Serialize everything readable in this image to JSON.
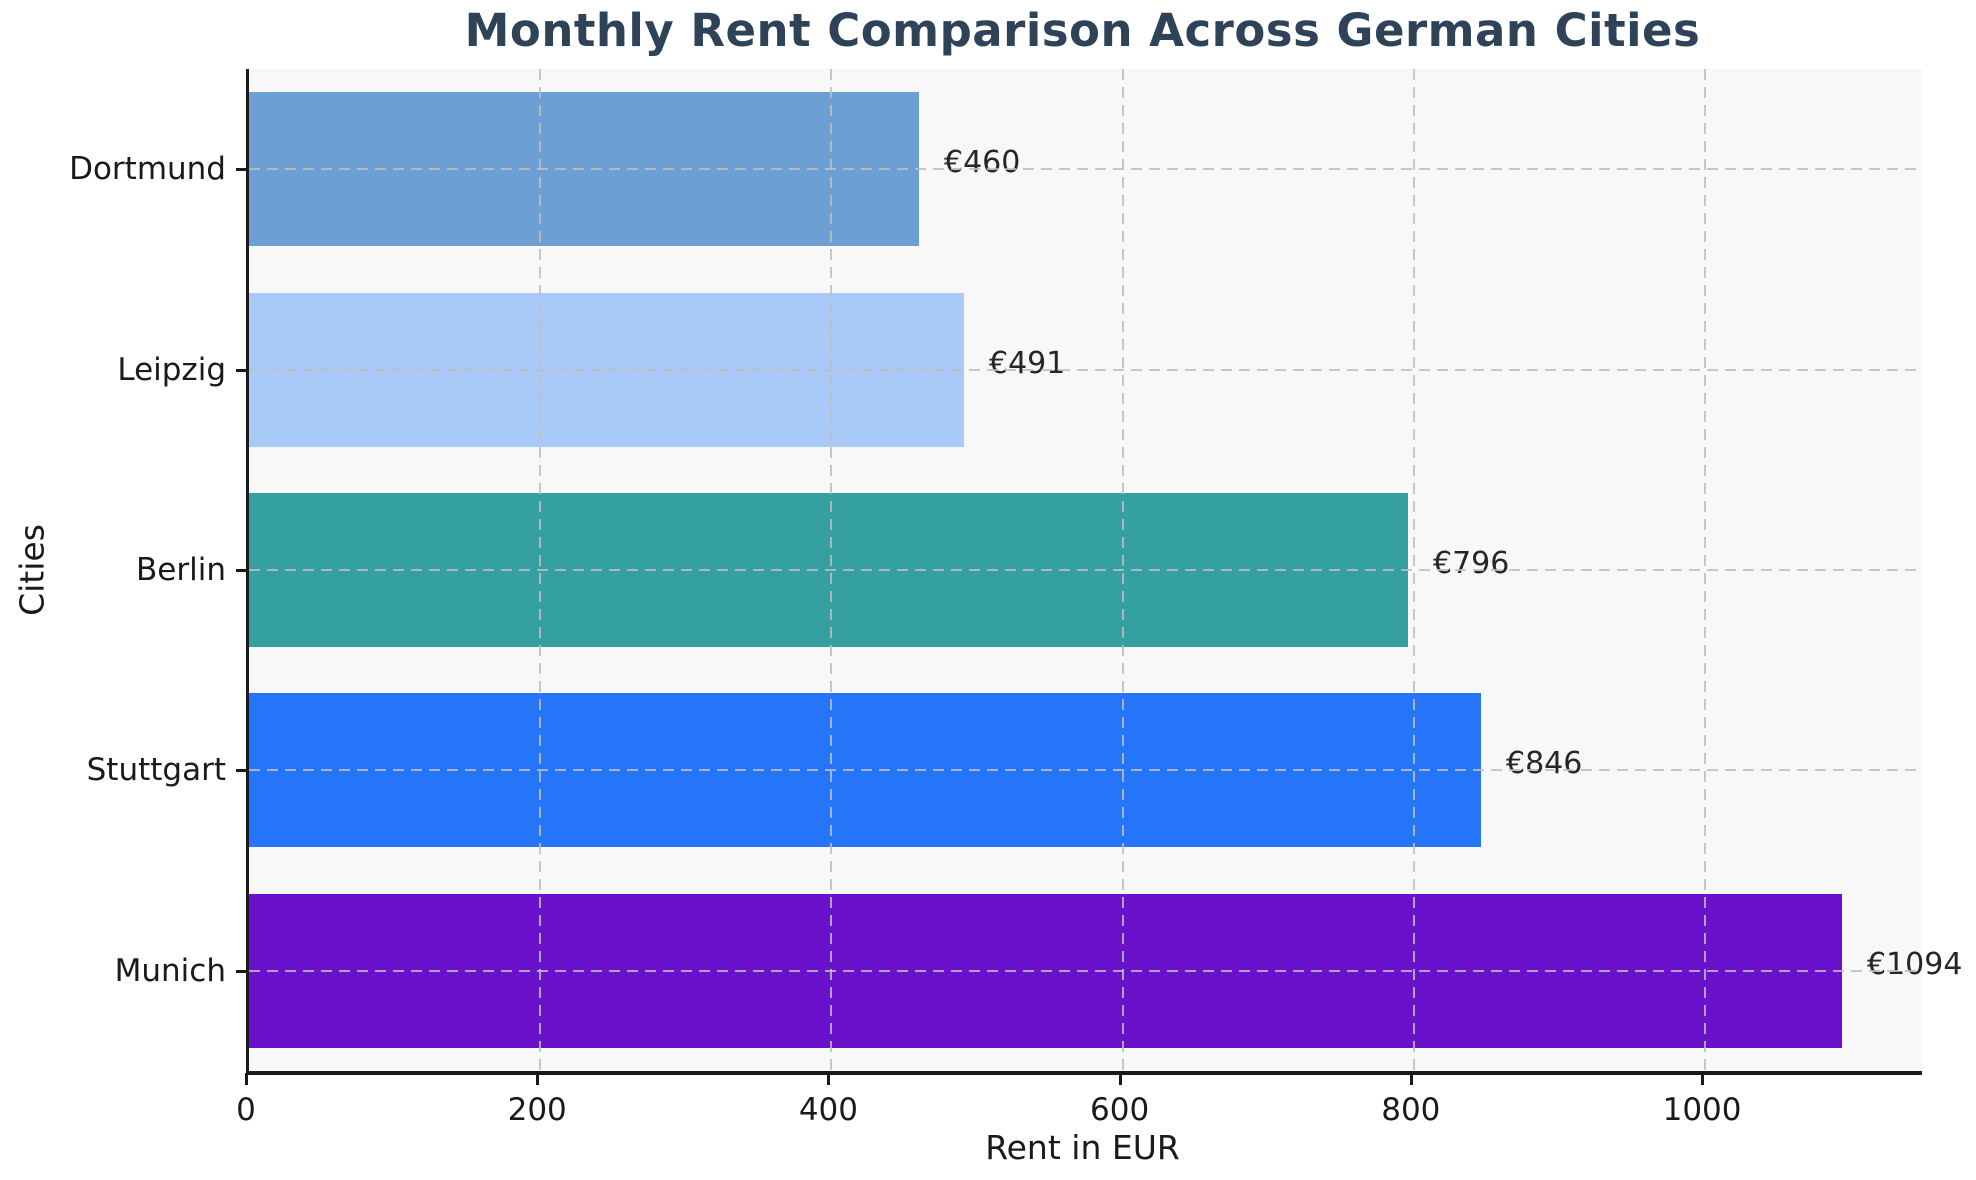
{
  "chart_data": {
    "type": "bar",
    "orientation": "horizontal",
    "title": "Monthly Rent Comparison Across German Cities",
    "xlabel": "Rent in EUR",
    "ylabel": "Cities",
    "categories": [
      "Dortmund",
      "Leipzig",
      "Berlin",
      "Stuttgart",
      "Munich"
    ],
    "values": [
      460,
      491,
      796,
      846,
      1094
    ],
    "value_labels": [
      "€460",
      "€491",
      "€796",
      "€846",
      "€1094"
    ],
    "bar_colors": [
      "#6d9fd4",
      "#a9c9f7",
      "#35a0a0",
      "#2575f8",
      "#6a11cb"
    ],
    "x_ticks": [
      0,
      200,
      400,
      600,
      800,
      1000
    ],
    "x_tick_labels": [
      "0",
      "200",
      "400",
      "600",
      "800",
      "1000"
    ],
    "xlim": [
      0,
      1149
    ],
    "grid": "dashed, both axes, drawn over bars",
    "legend": "none",
    "colors": {
      "title": "#2f4358",
      "plot_background": "#f8f8f8",
      "figure_background": "#ffffff",
      "axis_spine": "#1a1a1a",
      "gridline": "#bebebe",
      "tick_text": "#1a1a1a",
      "value_text": "#262626"
    }
  }
}
